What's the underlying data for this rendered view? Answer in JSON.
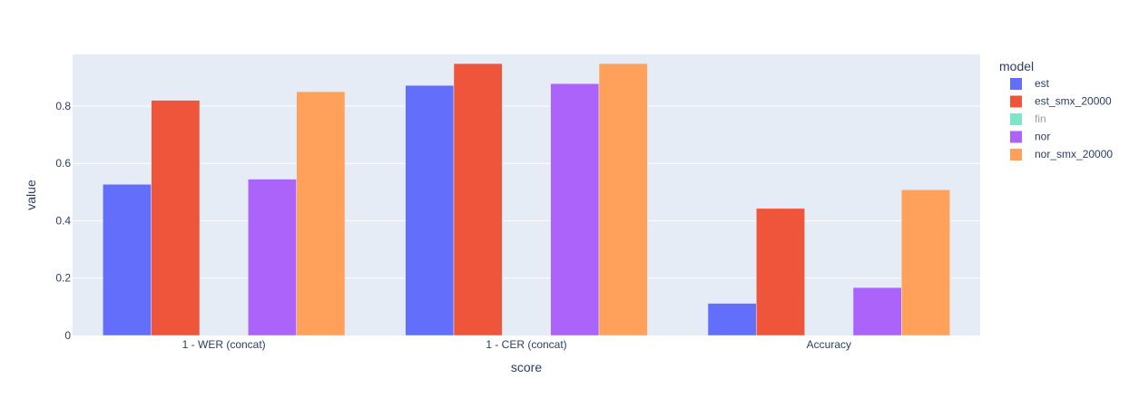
{
  "chart_data": {
    "type": "bar",
    "barmode": "group",
    "categories": [
      "1 - WER (concat)",
      "1 - CER (concat)",
      "Accuracy"
    ],
    "series": [
      {
        "name": "est",
        "color": "#636efa",
        "visible": true,
        "values": [
          0.527,
          0.872,
          0.112
        ]
      },
      {
        "name": "est_smx_20000",
        "color": "#ef553b",
        "visible": true,
        "values": [
          0.82,
          0.948,
          0.443
        ]
      },
      {
        "name": "fin",
        "color": "#00cc96",
        "visible": false,
        "values": [
          null,
          null,
          null
        ]
      },
      {
        "name": "nor",
        "color": "#ab63fa",
        "visible": true,
        "values": [
          0.545,
          0.878,
          0.167
        ]
      },
      {
        "name": "nor_smx_20000",
        "color": "#ffa15a",
        "visible": true,
        "values": [
          0.85,
          0.948,
          0.508
        ]
      }
    ],
    "xlabel": "score",
    "ylabel": "value",
    "ylim": [
      0,
      0.98
    ],
    "yticks": [
      0,
      0.2,
      0.4,
      0.6,
      0.8
    ],
    "ytick_labels": [
      "0",
      "0.2",
      "0.4",
      "0.6",
      "0.8"
    ],
    "legend_title": "model",
    "legend_position": "right",
    "grid": true,
    "plot_background": "#e5ecf6"
  }
}
